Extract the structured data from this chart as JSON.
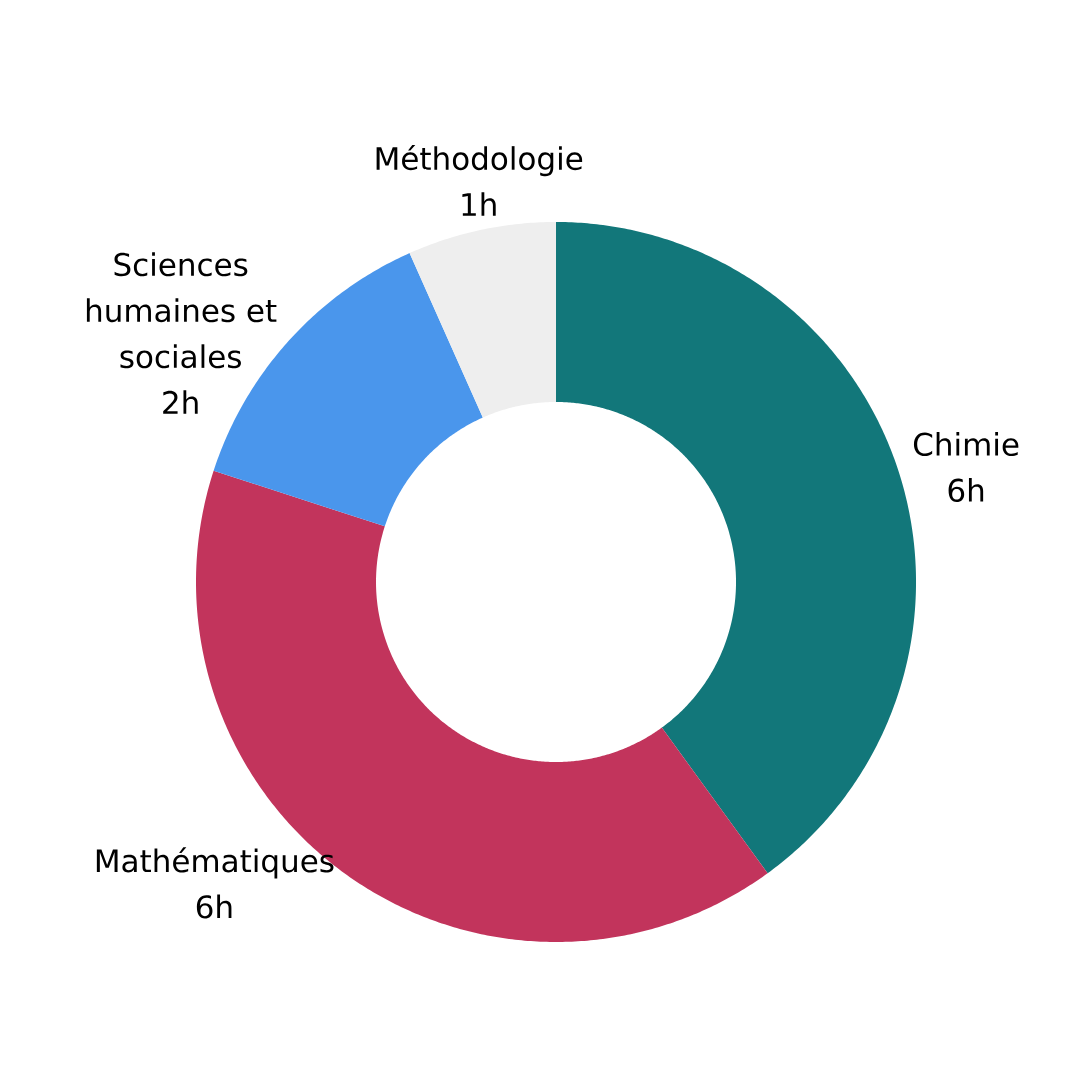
{
  "chart_data": {
    "type": "donut",
    "categories": [
      "Chimie",
      "Mathématiques",
      "Sciences humaines et sociales",
      "Méthodologie"
    ],
    "values": [
      6,
      6,
      2,
      1
    ],
    "value_labels": [
      "6h",
      "6h",
      "2h",
      "1h"
    ],
    "colors": [
      "#12777a",
      "#c2345c",
      "#4a96ec",
      "#eeeeee"
    ]
  }
}
